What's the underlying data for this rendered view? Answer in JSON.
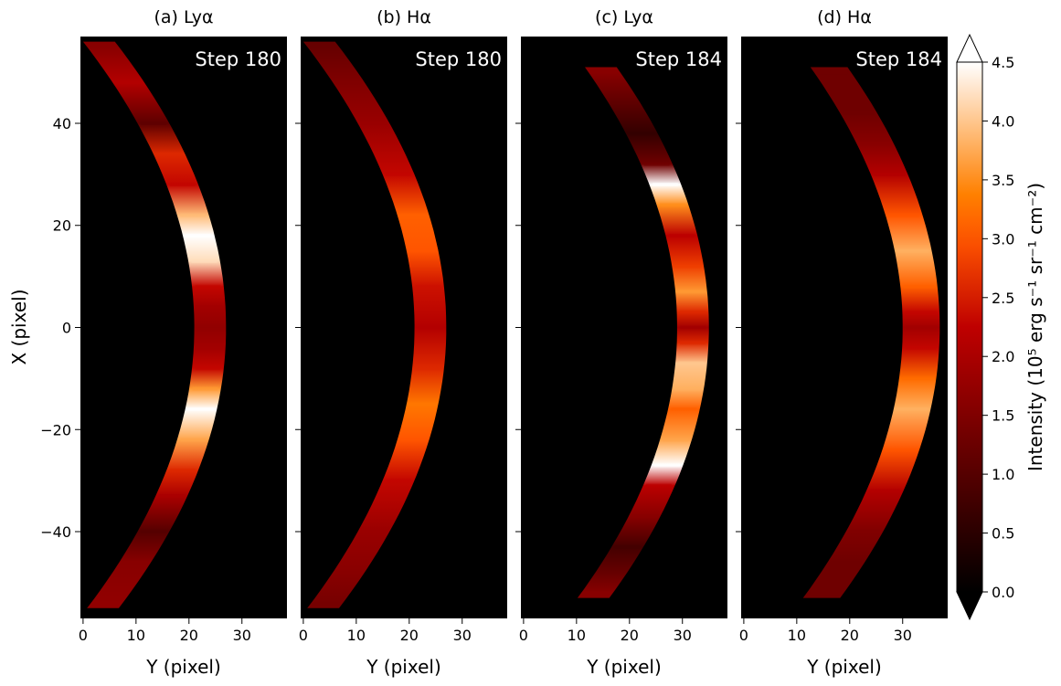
{
  "chart_data": {
    "type": "heatmap",
    "colormap": "gist_heat",
    "background_color": "#000000",
    "shared_axes": {
      "xlabel": "Y (pixel)",
      "ylabel": "X (pixel)",
      "xlim": [
        -0.5,
        38.5
      ],
      "ylim": [
        -57,
        57
      ],
      "xticks": [
        0,
        10,
        20,
        30
      ],
      "yticks": [
        40,
        20,
        0,
        -20,
        -40
      ],
      "ytick_labels": [
        "40",
        "20",
        "0",
        "−20",
        "−40"
      ]
    },
    "panels": [
      {
        "title": "(a) Lyα",
        "step_label": "Step 180",
        "inner_edge_center_y": 21,
        "outer_edge_center_y": 27,
        "intensity_profile": [
          {
            "x": 55,
            "v": 1.6
          },
          {
            "x": 48,
            "v": 2.1
          },
          {
            "x": 40,
            "v": 1.1
          },
          {
            "x": 34,
            "v": 2.6
          },
          {
            "x": 28,
            "v": 2.3
          },
          {
            "x": 22,
            "v": 3.9
          },
          {
            "x": 18,
            "v": 4.6
          },
          {
            "x": 13,
            "v": 4.2
          },
          {
            "x": 8,
            "v": 2.3
          },
          {
            "x": 4,
            "v": 1.9
          },
          {
            "x": 0,
            "v": 1.7
          },
          {
            "x": -4,
            "v": 1.9
          },
          {
            "x": -8,
            "v": 2.3
          },
          {
            "x": -12,
            "v": 3.6
          },
          {
            "x": -16,
            "v": 4.6
          },
          {
            "x": -22,
            "v": 3.7
          },
          {
            "x": -28,
            "v": 2.6
          },
          {
            "x": -33,
            "v": 2.0
          },
          {
            "x": -40,
            "v": 1.0
          },
          {
            "x": -46,
            "v": 1.6
          },
          {
            "x": -54,
            "v": 1.7
          }
        ]
      },
      {
        "title": "(b) Hα",
        "step_label": "Step 180",
        "inner_edge_center_y": 21,
        "outer_edge_center_y": 27,
        "intensity_profile": [
          {
            "x": 55,
            "v": 1.2
          },
          {
            "x": 48,
            "v": 1.5
          },
          {
            "x": 40,
            "v": 1.8
          },
          {
            "x": 30,
            "v": 2.3
          },
          {
            "x": 22,
            "v": 3.1
          },
          {
            "x": 15,
            "v": 3.0
          },
          {
            "x": 8,
            "v": 2.4
          },
          {
            "x": 0,
            "v": 2.1
          },
          {
            "x": -8,
            "v": 2.6
          },
          {
            "x": -15,
            "v": 3.3
          },
          {
            "x": -22,
            "v": 3.0
          },
          {
            "x": -30,
            "v": 2.3
          },
          {
            "x": -40,
            "v": 1.8
          },
          {
            "x": -48,
            "v": 1.6
          },
          {
            "x": -54,
            "v": 1.4
          }
        ]
      },
      {
        "title": "(c) Lyα",
        "step_label": "Step 184",
        "inner_edge_center_y": 29,
        "outer_edge_center_y": 35,
        "intensity_profile": [
          {
            "x": 50,
            "v": 1.6
          },
          {
            "x": 44,
            "v": 1.1
          },
          {
            "x": 38,
            "v": 0.6
          },
          {
            "x": 32,
            "v": 1.3
          },
          {
            "x": 28,
            "v": 4.5
          },
          {
            "x": 24,
            "v": 3.5
          },
          {
            "x": 18,
            "v": 2.2
          },
          {
            "x": 12,
            "v": 2.8
          },
          {
            "x": 7,
            "v": 3.6
          },
          {
            "x": 3,
            "v": 2.6
          },
          {
            "x": 0,
            "v": 1.9
          },
          {
            "x": -3,
            "v": 2.6
          },
          {
            "x": -7,
            "v": 4.0
          },
          {
            "x": -12,
            "v": 3.8
          },
          {
            "x": -16,
            "v": 3.1
          },
          {
            "x": -22,
            "v": 3.7
          },
          {
            "x": -27,
            "v": 4.6
          },
          {
            "x": -31,
            "v": 2.2
          },
          {
            "x": -37,
            "v": 1.6
          },
          {
            "x": -43,
            "v": 0.8
          },
          {
            "x": -48,
            "v": 1.2
          },
          {
            "x": -52,
            "v": 1.6
          }
        ]
      },
      {
        "title": "(d) Hα",
        "step_label": "Step 184",
        "inner_edge_center_y": 30,
        "outer_edge_center_y": 37,
        "intensity_profile": [
          {
            "x": 50,
            "v": 1.3
          },
          {
            "x": 42,
            "v": 1.3
          },
          {
            "x": 36,
            "v": 1.6
          },
          {
            "x": 30,
            "v": 2.1
          },
          {
            "x": 22,
            "v": 3.0
          },
          {
            "x": 15,
            "v": 3.8
          },
          {
            "x": 8,
            "v": 3.1
          },
          {
            "x": 3,
            "v": 2.3
          },
          {
            "x": 0,
            "v": 1.9
          },
          {
            "x": -4,
            "v": 2.3
          },
          {
            "x": -10,
            "v": 3.2
          },
          {
            "x": -16,
            "v": 3.8
          },
          {
            "x": -24,
            "v": 3.0
          },
          {
            "x": -32,
            "v": 2.1
          },
          {
            "x": -40,
            "v": 1.5
          },
          {
            "x": -46,
            "v": 1.3
          },
          {
            "x": -52,
            "v": 1.3
          }
        ]
      }
    ],
    "colorbar": {
      "label": "Intensity (10⁵ erg s⁻¹ sr⁻¹ cm⁻²)",
      "range": [
        0,
        4.5
      ],
      "extend": "both",
      "ticks": [
        0.0,
        0.5,
        1.0,
        1.5,
        2.0,
        2.5,
        3.0,
        3.5,
        4.0,
        4.5
      ],
      "tick_labels": [
        "0.0",
        "0.5",
        "1.0",
        "1.5",
        "2.0",
        "2.5",
        "3.0",
        "3.5",
        "4.0",
        "4.5"
      ]
    }
  }
}
